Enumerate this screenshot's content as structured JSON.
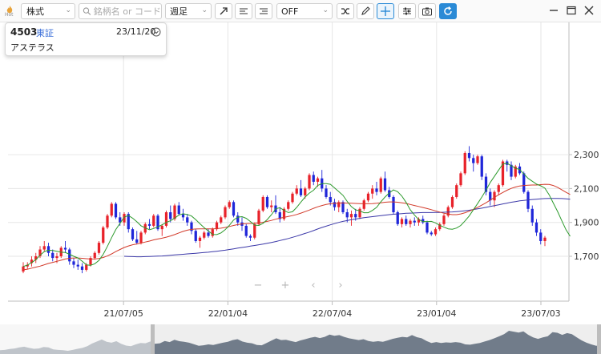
{
  "toolbar": {
    "hot_label": "Hot",
    "market_select": "株式",
    "search_placeholder": "銘柄名 or コード",
    "period_select": "週足",
    "indicator_select": "OFF"
  },
  "info": {
    "code": "4503",
    "market": "東証",
    "date": "23/11/20",
    "name": "アステラス"
  },
  "colors": {
    "up": "#e8222a",
    "down": "#1f26d9",
    "ma_short": "#2c9a2c",
    "ma_mid": "#d23a2a",
    "ma_long": "#3b38a8",
    "accent": "#2a8ad6"
  },
  "nav": {
    "zoom_out": "−",
    "zoom_in": "+",
    "prev": "‹",
    "next": "›"
  },
  "chart_data": {
    "type": "candlestick",
    "y_ticks": [
      "2,300",
      "2,100",
      "1,900",
      "1,700"
    ],
    "x_ticks": [
      "21/07/05",
      "22/01/04",
      "22/07/04",
      "23/01/04",
      "23/07/03"
    ],
    "ylim": [
      1610,
      2370
    ],
    "grid": true,
    "candles": [
      [
        1610,
        1665,
        1600,
        1640
      ],
      [
        1640,
        1665,
        1625,
        1650
      ],
      [
        1660,
        1700,
        1640,
        1680
      ],
      [
        1680,
        1720,
        1660,
        1700
      ],
      [
        1700,
        1760,
        1690,
        1740
      ],
      [
        1740,
        1790,
        1730,
        1760
      ],
      [
        1760,
        1780,
        1700,
        1720
      ],
      [
        1720,
        1740,
        1670,
        1690
      ],
      [
        1690,
        1720,
        1660,
        1700
      ],
      [
        1700,
        1760,
        1690,
        1750
      ],
      [
        1750,
        1790,
        1720,
        1740
      ],
      [
        1740,
        1750,
        1650,
        1670
      ],
      [
        1670,
        1690,
        1630,
        1650
      ],
      [
        1650,
        1680,
        1620,
        1640
      ],
      [
        1640,
        1660,
        1600,
        1620
      ],
      [
        1620,
        1660,
        1610,
        1650
      ],
      [
        1650,
        1700,
        1640,
        1690
      ],
      [
        1690,
        1730,
        1680,
        1720
      ],
      [
        1720,
        1790,
        1710,
        1780
      ],
      [
        1780,
        1880,
        1770,
        1870
      ],
      [
        1870,
        1950,
        1860,
        1940
      ],
      [
        1940,
        2020,
        1930,
        2010
      ],
      [
        2010,
        2020,
        1920,
        1930
      ],
      [
        1930,
        1960,
        1880,
        1900
      ],
      [
        1900,
        1960,
        1880,
        1950
      ],
      [
        1950,
        1960,
        1840,
        1860
      ],
      [
        1860,
        1870,
        1790,
        1800
      ],
      [
        1800,
        1850,
        1770,
        1780
      ],
      [
        1780,
        1850,
        1770,
        1840
      ],
      [
        1840,
        1900,
        1830,
        1890
      ],
      [
        1890,
        1920,
        1860,
        1880
      ],
      [
        1880,
        1950,
        1870,
        1940
      ],
      [
        1940,
        1950,
        1850,
        1860
      ],
      [
        1860,
        1890,
        1820,
        1880
      ],
      [
        1880,
        1970,
        1870,
        1960
      ],
      [
        1960,
        2000,
        1900,
        1920
      ],
      [
        1920,
        2010,
        1910,
        2000
      ],
      [
        2000,
        2020,
        1940,
        1950
      ],
      [
        1950,
        1980,
        1910,
        1930
      ],
      [
        1930,
        1950,
        1880,
        1900
      ],
      [
        1900,
        1910,
        1830,
        1850
      ],
      [
        1850,
        1860,
        1780,
        1790
      ],
      [
        1790,
        1820,
        1750,
        1810
      ],
      [
        1810,
        1850,
        1800,
        1840
      ],
      [
        1840,
        1860,
        1810,
        1820
      ],
      [
        1820,
        1870,
        1810,
        1860
      ],
      [
        1860,
        1910,
        1850,
        1900
      ],
      [
        1900,
        1940,
        1890,
        1930
      ],
      [
        1930,
        2000,
        1920,
        1990
      ],
      [
        1990,
        2030,
        1980,
        2020
      ],
      [
        2020,
        2030,
        1930,
        1940
      ],
      [
        1940,
        1960,
        1880,
        1900
      ],
      [
        1900,
        1930,
        1850,
        1880
      ],
      [
        1880,
        1890,
        1810,
        1820
      ],
      [
        1820,
        1830,
        1790,
        1810
      ],
      [
        1810,
        1900,
        1800,
        1890
      ],
      [
        1890,
        1980,
        1880,
        1970
      ],
      [
        1970,
        2060,
        1960,
        2050
      ],
      [
        2050,
        2060,
        1980,
        1990
      ],
      [
        1990,
        2030,
        1960,
        2000
      ],
      [
        2000,
        2060,
        1950,
        1960
      ],
      [
        1960,
        1990,
        1900,
        1920
      ],
      [
        1920,
        1990,
        1910,
        1980
      ],
      [
        1980,
        2030,
        1970,
        2020
      ],
      [
        2020,
        2080,
        2010,
        2070
      ],
      [
        2070,
        2120,
        2060,
        2100
      ],
      [
        2100,
        2150,
        2050,
        2060
      ],
      [
        2060,
        2110,
        2040,
        2100
      ],
      [
        2100,
        2190,
        2090,
        2180
      ],
      [
        2180,
        2200,
        2120,
        2140
      ],
      [
        2140,
        2170,
        2110,
        2160
      ],
      [
        2160,
        2210,
        2080,
        2100
      ],
      [
        2100,
        2120,
        2040,
        2050
      ],
      [
        2050,
        2080,
        2000,
        2020
      ],
      [
        2020,
        2040,
        1970,
        1990
      ],
      [
        1990,
        2030,
        1960,
        2020
      ],
      [
        2020,
        2030,
        1950,
        1960
      ],
      [
        1960,
        1980,
        1900,
        1930
      ],
      [
        1930,
        1970,
        1880,
        1950
      ],
      [
        1950,
        1980,
        1910,
        1930
      ],
      [
        1930,
        1990,
        1920,
        1980
      ],
      [
        1980,
        2040,
        1970,
        2030
      ],
      [
        2030,
        2080,
        2020,
        2070
      ],
      [
        2070,
        2120,
        2040,
        2100
      ],
      [
        2100,
        2140,
        2060,
        2080
      ],
      [
        2080,
        2170,
        2070,
        2160
      ],
      [
        2160,
        2200,
        2080,
        2090
      ],
      [
        2090,
        2110,
        2040,
        2050
      ],
      [
        2050,
        2060,
        1950,
        1960
      ],
      [
        1960,
        1970,
        1880,
        1890
      ],
      [
        1890,
        1930,
        1870,
        1920
      ],
      [
        1920,
        1940,
        1880,
        1890
      ],
      [
        1890,
        1920,
        1870,
        1910
      ],
      [
        1910,
        1930,
        1880,
        1900
      ],
      [
        1900,
        1930,
        1880,
        1920
      ],
      [
        1920,
        1940,
        1890,
        1900
      ],
      [
        1900,
        1910,
        1830,
        1840
      ],
      [
        1840,
        1850,
        1820,
        1830
      ],
      [
        1830,
        1870,
        1820,
        1860
      ],
      [
        1860,
        1900,
        1850,
        1890
      ],
      [
        1890,
        1950,
        1880,
        1940
      ],
      [
        1940,
        2000,
        1930,
        1990
      ],
      [
        1990,
        2060,
        1980,
        2050
      ],
      [
        2050,
        2130,
        2040,
        2120
      ],
      [
        2120,
        2200,
        2110,
        2190
      ],
      [
        2190,
        2320,
        2180,
        2310
      ],
      [
        2310,
        2350,
        2260,
        2280
      ],
      [
        2280,
        2300,
        2200,
        2250
      ],
      [
        2250,
        2300,
        2240,
        2290
      ],
      [
        2290,
        2300,
        2150,
        2170
      ],
      [
        2170,
        2190,
        2060,
        2080
      ],
      [
        2080,
        2100,
        2000,
        2030
      ],
      [
        2030,
        2090,
        1990,
        2080
      ],
      [
        2080,
        2130,
        2060,
        2120
      ],
      [
        2120,
        2270,
        2110,
        2260
      ],
      [
        2260,
        2270,
        2200,
        2240
      ],
      [
        2240,
        2260,
        2150,
        2170
      ],
      [
        2170,
        2240,
        2160,
        2230
      ],
      [
        2230,
        2250,
        2180,
        2190
      ],
      [
        2190,
        2200,
        2070,
        2080
      ],
      [
        2080,
        2090,
        1960,
        1980
      ],
      [
        1980,
        2000,
        1880,
        1900
      ],
      [
        1900,
        1920,
        1820,
        1840
      ],
      [
        1840,
        1860,
        1770,
        1790
      ],
      [
        1790,
        1820,
        1760,
        1810
      ]
    ],
    "ma_short": [
      1640,
      1648,
      1663,
      1680,
      1706,
      1728,
      1736,
      1734,
      1730,
      1724,
      1722,
      1712,
      1700,
      1690,
      1671,
      1650,
      1646,
      1656,
      1676,
      1712,
      1758,
      1810,
      1858,
      1895,
      1931,
      1941,
      1925,
      1904,
      1880,
      1868,
      1857,
      1864,
      1874,
      1886,
      1900,
      1910,
      1925,
      1944,
      1951,
      1947,
      1938,
      1916,
      1892,
      1869,
      1850,
      1829,
      1828,
      1838,
      1857,
      1883,
      1914,
      1931,
      1934,
      1924,
      1905,
      1884,
      1882,
      1895,
      1917,
      1946,
      1980,
      1987,
      1971,
      1958,
      1963,
      1989,
      2020,
      2050,
      2073,
      2090,
      2118,
      2129,
      2129,
      2125,
      2104,
      2082,
      2060,
      2024,
      1993,
      1974,
      1968,
      1957,
      1957,
      1971,
      1989,
      2022,
      2050,
      2074,
      2092,
      2081,
      2055,
      2018,
      1974,
      1943,
      1917,
      1905,
      1905,
      1906,
      1897,
      1883,
      1872,
      1862,
      1860,
      1867,
      1882,
      1909,
      1938,
      1975,
      2011,
      2050,
      2090,
      2136,
      2172,
      2209,
      2244,
      2250,
      2234,
      2220,
      2212,
      2186,
      2160,
      2143,
      2126,
      2116,
      2102,
      2063,
      2014,
      1965,
      1911,
      1857,
      1818
    ],
    "ma_mid": [
      1620,
      1624,
      1630,
      1636,
      1642,
      1650,
      1658,
      1664,
      1670,
      1677,
      1684,
      1688,
      1690,
      1690,
      1688,
      1686,
      1684,
      1684,
      1687,
      1693,
      1702,
      1714,
      1728,
      1740,
      1752,
      1761,
      1768,
      1773,
      1778,
      1784,
      1790,
      1797,
      1802,
      1807,
      1813,
      1820,
      1828,
      1838,
      1847,
      1854,
      1859,
      1861,
      1862,
      1862,
      1862,
      1862,
      1863,
      1866,
      1870,
      1876,
      1882,
      1887,
      1891,
      1893,
      1894,
      1895,
      1897,
      1901,
      1906,
      1912,
      1919,
      1925,
      1930,
      1935,
      1940,
      1947,
      1955,
      1964,
      1973,
      1983,
      1992,
      2000,
      2006,
      2010,
      2012,
      2014,
      2015,
      2014,
      2013,
      2012,
      2011,
      2010,
      2010,
      2011,
      2013,
      2016,
      2019,
      2021,
      2021,
      2019,
      2016,
      2012,
      2006,
      2000,
      1994,
      1988,
      1982,
      1975,
      1968,
      1961,
      1954,
      1949,
      1946,
      1946,
      1950,
      1957,
      1966,
      1977,
      1989,
      2002,
      2016,
      2032,
      2048,
      2063,
      2077,
      2090,
      2101,
      2109,
      2115,
      2118,
      2120,
      2121,
      2121,
      2123,
      2125,
      2124,
      2118,
      2107,
      2093,
      2078,
      2065
    ],
    "ma_long": [
      null,
      null,
      null,
      null,
      null,
      null,
      null,
      null,
      null,
      null,
      null,
      null,
      null,
      null,
      null,
      null,
      null,
      null,
      null,
      null,
      null,
      null,
      null,
      null,
      1700,
      1699,
      1698,
      1697,
      1697,
      1698,
      1699,
      1700,
      1701,
      1702,
      1704,
      1706,
      1708,
      1710,
      1712,
      1714,
      1716,
      1718,
      1720,
      1722,
      1724,
      1727,
      1730,
      1733,
      1736,
      1740,
      1744,
      1748,
      1752,
      1756,
      1760,
      1764,
      1768,
      1772,
      1777,
      1782,
      1787,
      1793,
      1799,
      1805,
      1812,
      1819,
      1827,
      1835,
      1843,
      1852,
      1861,
      1870,
      1878,
      1886,
      1893,
      1900,
      1906,
      1911,
      1916,
      1920,
      1924,
      1928,
      1931,
      1934,
      1937,
      1940,
      1943,
      1946,
      1948,
      1950,
      1952,
      1954,
      1955,
      1956,
      1957,
      1958,
      1958,
      1958,
      1959,
      1959,
      1960,
      1961,
      1962,
      1964,
      1966,
      1969,
      1972,
      1976,
      1980,
      1984,
      1989,
      1994,
      1999,
      2004,
      2009,
      2014,
      2019,
      2023,
      2027,
      2030,
      2033,
      2035,
      2037,
      2039,
      2041,
      2042,
      2042,
      2042,
      2041,
      2039,
      2037
    ]
  }
}
